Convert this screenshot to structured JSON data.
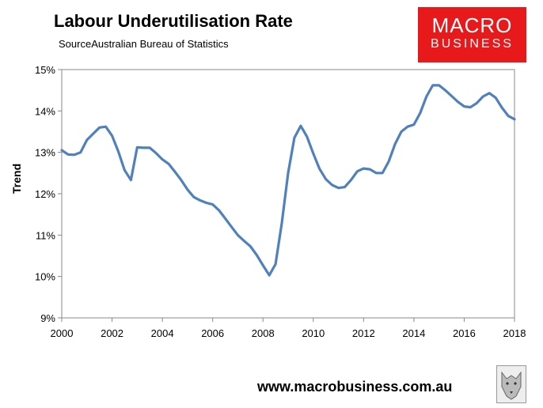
{
  "header": {
    "title": "Labour Underutilisation Rate",
    "subtitle": "SourceAustralian Bureau of Statistics"
  },
  "logo": {
    "line1": "MACRO",
    "line2": "BUSINESS"
  },
  "footer": {
    "url": "www.macrobusiness.com.au"
  },
  "chart_data": {
    "type": "line",
    "title": "Labour Underutilisation Rate",
    "xlabel": "",
    "ylabel": "Trend",
    "xlim": [
      2000,
      2018
    ],
    "ylim": [
      9,
      15
    ],
    "x_ticks": [
      "2000",
      "2002",
      "2004",
      "2006",
      "2008",
      "2010",
      "2012",
      "2014",
      "2016",
      "2018"
    ],
    "y_ticks": [
      "9%",
      "10%",
      "11%",
      "12%",
      "13%",
      "14%",
      "15%"
    ],
    "grid": false,
    "legend": "none",
    "color": "#4f81bd",
    "series": [
      {
        "x": [
          2000.0,
          2000.25,
          2000.5,
          2000.75,
          2001.0,
          2001.25,
          2001.5,
          2001.75,
          2002.0,
          2002.25,
          2002.5,
          2002.75,
          2003.0,
          2003.25,
          2003.5,
          2003.75,
          2004.0,
          2004.25,
          2004.5,
          2004.75,
          2005.0,
          2005.25,
          2005.5,
          2005.75,
          2006.0,
          2006.25,
          2006.5,
          2006.75,
          2007.0,
          2007.25,
          2007.5,
          2007.75,
          2008.0,
          2008.25,
          2008.5,
          2008.75,
          2009.0,
          2009.25,
          2009.5,
          2009.75,
          2010.0,
          2010.25,
          2010.5,
          2010.75,
          2011.0,
          2011.25,
          2011.5,
          2011.75,
          2012.0,
          2012.25,
          2012.5,
          2012.75,
          2013.0,
          2013.25,
          2013.5,
          2013.75,
          2014.0,
          2014.25,
          2014.5,
          2014.75,
          2015.0,
          2015.25,
          2015.5,
          2015.75,
          2016.0,
          2016.25,
          2016.5,
          2016.75,
          2017.0,
          2017.25,
          2017.5,
          2017.75,
          2018.0
        ],
        "y": [
          13.05,
          12.95,
          12.94,
          13.0,
          13.3,
          13.45,
          13.6,
          13.62,
          13.4,
          13.02,
          12.57,
          12.33,
          13.12,
          13.11,
          13.11,
          12.98,
          12.83,
          12.72,
          12.53,
          12.33,
          12.1,
          11.92,
          11.84,
          11.78,
          11.74,
          11.6,
          11.4,
          11.2,
          11.0,
          10.86,
          10.73,
          10.52,
          10.27,
          10.03,
          10.3,
          11.3,
          12.5,
          13.35,
          13.64,
          13.38,
          12.97,
          12.6,
          12.35,
          12.21,
          12.14,
          12.16,
          12.33,
          12.54,
          12.61,
          12.59,
          12.5,
          12.5,
          12.78,
          13.2,
          13.5,
          13.62,
          13.67,
          13.95,
          14.35,
          14.62,
          14.62,
          14.5,
          14.36,
          14.22,
          14.11,
          14.09,
          14.19,
          14.35,
          14.43,
          14.32,
          14.08,
          13.88,
          13.8
        ]
      }
    ]
  }
}
